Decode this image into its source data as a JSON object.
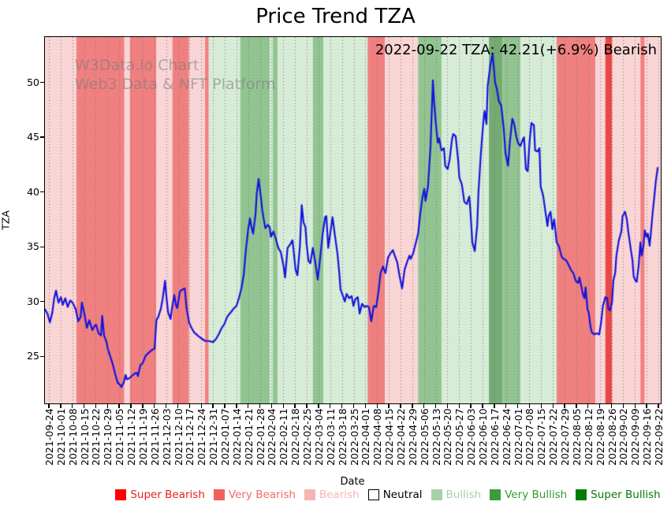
{
  "chart_data": {
    "type": "line",
    "title": "Price Trend TZA",
    "annotation": "2022-09-22 TZA: 42.21(+6.9%) Bearish",
    "watermark_line1": "W3Data.io Chart",
    "watermark_line2": "Web3 Data & NFT Platform",
    "xlabel": "Date",
    "ylabel": "TZA",
    "grid": "vertical-dotted",
    "grid_color": "#777777",
    "line_color": "#1414dd",
    "line_width": 2.2,
    "y_ticks": [
      25,
      30,
      35,
      40,
      45,
      50
    ],
    "y_range": [
      20.7,
      54.15
    ],
    "x_tick_labels": [
      "2021-09-24",
      "2021-10-01",
      "2021-10-08",
      "2021-10-15",
      "2021-10-22",
      "2021-10-29",
      "2021-11-05",
      "2021-11-12",
      "2021-11-19",
      "2021-11-26",
      "2021-12-03",
      "2021-12-10",
      "2021-12-17",
      "2021-12-24",
      "2021-12-31",
      "2022-01-07",
      "2022-01-14",
      "2022-01-21",
      "2022-01-28",
      "2022-02-04",
      "2022-02-11",
      "2022-02-18",
      "2022-02-25",
      "2022-03-04",
      "2022-03-11",
      "2022-03-18",
      "2022-03-25",
      "2022-04-01",
      "2022-04-08",
      "2022-04-15",
      "2022-04-22",
      "2022-04-29",
      "2022-05-06",
      "2022-05-13",
      "2022-05-20",
      "2022-05-27",
      "2022-06-03",
      "2022-06-10",
      "2022-06-17",
      "2022-06-24",
      "2022-07-01",
      "2022-07-08",
      "2022-07-15",
      "2022-07-22",
      "2022-07-29",
      "2022-08-05",
      "2022-08-12",
      "2022-08-19",
      "2022-08-26",
      "2022-09-02",
      "2022-09-09",
      "2022-09-16",
      "2022-09-22"
    ],
    "band_colors": {
      "super-bearish": "#e84848",
      "very-bearish": "#f08080",
      "bearish": "#fad5d5",
      "neutral": "#ffffff",
      "bullish": "#d7ecd7",
      "very-bullish": "#92c492",
      "super-bullish": "#73ab73"
    },
    "bands": [
      [
        0.0,
        0.051,
        "bearish"
      ],
      [
        0.051,
        0.129,
        "very-bearish"
      ],
      [
        0.129,
        0.138,
        "bearish"
      ],
      [
        0.138,
        0.181,
        "very-bearish"
      ],
      [
        0.181,
        0.207,
        "bearish"
      ],
      [
        0.207,
        0.234,
        "very-bearish"
      ],
      [
        0.234,
        0.26,
        "bearish"
      ],
      [
        0.26,
        0.266,
        "very-bearish"
      ],
      [
        0.266,
        0.317,
        "bullish"
      ],
      [
        0.317,
        0.365,
        "very-bullish"
      ],
      [
        0.365,
        0.37,
        "bullish"
      ],
      [
        0.37,
        0.378,
        "very-bullish"
      ],
      [
        0.378,
        0.435,
        "bullish"
      ],
      [
        0.435,
        0.452,
        "very-bullish"
      ],
      [
        0.452,
        0.524,
        "bullish"
      ],
      [
        0.524,
        0.552,
        "very-bearish"
      ],
      [
        0.552,
        0.606,
        "bearish"
      ],
      [
        0.606,
        0.644,
        "very-bullish"
      ],
      [
        0.644,
        0.721,
        "bullish"
      ],
      [
        0.721,
        0.743,
        "super-bullish"
      ],
      [
        0.743,
        0.772,
        "very-bullish"
      ],
      [
        0.772,
        0.831,
        "bullish"
      ],
      [
        0.831,
        0.894,
        "very-bearish"
      ],
      [
        0.894,
        0.91,
        "bearish"
      ],
      [
        0.91,
        0.921,
        "super-bearish"
      ],
      [
        0.921,
        0.967,
        "bearish"
      ],
      [
        0.967,
        0.974,
        "very-bearish"
      ],
      [
        0.974,
        1.0,
        "bearish"
      ]
    ],
    "points": [
      [
        0.0,
        29.3
      ],
      [
        0.004,
        28.9
      ],
      [
        0.008,
        28.1
      ],
      [
        0.012,
        29.0
      ],
      [
        0.015,
        30.3
      ],
      [
        0.018,
        31.0
      ],
      [
        0.022,
        29.9
      ],
      [
        0.026,
        30.4
      ],
      [
        0.029,
        29.7
      ],
      [
        0.033,
        30.3
      ],
      [
        0.037,
        29.5
      ],
      [
        0.041,
        30.1
      ],
      [
        0.045,
        29.9
      ],
      [
        0.05,
        29.3
      ],
      [
        0.054,
        28.2
      ],
      [
        0.058,
        28.6
      ],
      [
        0.06,
        29.9
      ],
      [
        0.064,
        28.9
      ],
      [
        0.068,
        27.6
      ],
      [
        0.072,
        28.3
      ],
      [
        0.077,
        27.4
      ],
      [
        0.081,
        27.8
      ],
      [
        0.083,
        27.9
      ],
      [
        0.087,
        27.1
      ],
      [
        0.091,
        26.9
      ],
      [
        0.093,
        28.7
      ],
      [
        0.096,
        26.9
      ],
      [
        0.1,
        26.3
      ],
      [
        0.102,
        25.7
      ],
      [
        0.106,
        25.0
      ],
      [
        0.11,
        24.3
      ],
      [
        0.114,
        23.4
      ],
      [
        0.118,
        22.6
      ],
      [
        0.122,
        22.4
      ],
      [
        0.124,
        22.2
      ],
      [
        0.128,
        22.6
      ],
      [
        0.131,
        23.3
      ],
      [
        0.133,
        22.9
      ],
      [
        0.137,
        23.0
      ],
      [
        0.141,
        23.2
      ],
      [
        0.145,
        23.4
      ],
      [
        0.149,
        23.5
      ],
      [
        0.151,
        23.2
      ],
      [
        0.155,
        24.2
      ],
      [
        0.159,
        24.4
      ],
      [
        0.163,
        25.0
      ],
      [
        0.166,
        25.2
      ],
      [
        0.17,
        25.4
      ],
      [
        0.174,
        25.6
      ],
      [
        0.178,
        25.7
      ],
      [
        0.181,
        28.3
      ],
      [
        0.184,
        28.6
      ],
      [
        0.188,
        29.3
      ],
      [
        0.191,
        30.2
      ],
      [
        0.195,
        31.9
      ],
      [
        0.197,
        30.6
      ],
      [
        0.2,
        29.0
      ],
      [
        0.204,
        28.4
      ],
      [
        0.206,
        29.3
      ],
      [
        0.21,
        30.6
      ],
      [
        0.213,
        29.6
      ],
      [
        0.215,
        29.4
      ],
      [
        0.219,
        30.9
      ],
      [
        0.223,
        31.1
      ],
      [
        0.227,
        31.2
      ],
      [
        0.23,
        29.4
      ],
      [
        0.234,
        28.1
      ],
      [
        0.238,
        27.6
      ],
      [
        0.242,
        27.2
      ],
      [
        0.246,
        27.0
      ],
      [
        0.25,
        26.8
      ],
      [
        0.255,
        26.6
      ],
      [
        0.26,
        26.4
      ],
      [
        0.266,
        26.4
      ],
      [
        0.273,
        26.3
      ],
      [
        0.278,
        26.6
      ],
      [
        0.283,
        27.1
      ],
      [
        0.287,
        27.6
      ],
      [
        0.291,
        27.9
      ],
      [
        0.296,
        28.6
      ],
      [
        0.3,
        28.9
      ],
      [
        0.303,
        29.1
      ],
      [
        0.307,
        29.4
      ],
      [
        0.311,
        29.6
      ],
      [
        0.315,
        30.3
      ],
      [
        0.319,
        31.2
      ],
      [
        0.323,
        32.5
      ],
      [
        0.326,
        34.5
      ],
      [
        0.33,
        36.6
      ],
      [
        0.333,
        37.6
      ],
      [
        0.335,
        36.9
      ],
      [
        0.338,
        36.2
      ],
      [
        0.342,
        38.0
      ],
      [
        0.344,
        39.9
      ],
      [
        0.347,
        41.2
      ],
      [
        0.351,
        39.4
      ],
      [
        0.353,
        38.3
      ],
      [
        0.356,
        37.3
      ],
      [
        0.358,
        36.7
      ],
      [
        0.362,
        37.0
      ],
      [
        0.365,
        36.8
      ],
      [
        0.367,
        35.9
      ],
      [
        0.371,
        36.4
      ],
      [
        0.375,
        35.7
      ],
      [
        0.379,
        34.9
      ],
      [
        0.383,
        34.5
      ],
      [
        0.387,
        33.4
      ],
      [
        0.39,
        32.2
      ],
      [
        0.394,
        34.9
      ],
      [
        0.398,
        35.2
      ],
      [
        0.402,
        35.6
      ],
      [
        0.405,
        34.0
      ],
      [
        0.407,
        32.9
      ],
      [
        0.41,
        32.4
      ],
      [
        0.414,
        35.0
      ],
      [
        0.417,
        38.8
      ],
      [
        0.42,
        37.2
      ],
      [
        0.423,
        36.8
      ],
      [
        0.425,
        35.2
      ],
      [
        0.428,
        33.7
      ],
      [
        0.431,
        33.5
      ],
      [
        0.435,
        34.9
      ],
      [
        0.439,
        33.6
      ],
      [
        0.443,
        32.0
      ],
      [
        0.447,
        34.0
      ],
      [
        0.451,
        36.2
      ],
      [
        0.455,
        37.7
      ],
      [
        0.457,
        37.8
      ],
      [
        0.46,
        34.9
      ],
      [
        0.464,
        36.5
      ],
      [
        0.467,
        37.7
      ],
      [
        0.471,
        36.0
      ],
      [
        0.475,
        34.4
      ],
      [
        0.478,
        32.6
      ],
      [
        0.48,
        31.1
      ],
      [
        0.484,
        30.5
      ],
      [
        0.487,
        30.0
      ],
      [
        0.49,
        30.7
      ],
      [
        0.494,
        30.3
      ],
      [
        0.498,
        30.5
      ],
      [
        0.501,
        29.6
      ],
      [
        0.504,
        30.2
      ],
      [
        0.508,
        30.4
      ],
      [
        0.511,
        28.9
      ],
      [
        0.515,
        29.8
      ],
      [
        0.519,
        29.5
      ],
      [
        0.522,
        29.6
      ],
      [
        0.526,
        29.5
      ],
      [
        0.53,
        28.2
      ],
      [
        0.534,
        29.6
      ],
      [
        0.538,
        29.5
      ],
      [
        0.542,
        31.1
      ],
      [
        0.545,
        32.6
      ],
      [
        0.549,
        33.2
      ],
      [
        0.553,
        32.6
      ],
      [
        0.557,
        34.0
      ],
      [
        0.561,
        34.4
      ],
      [
        0.565,
        34.7
      ],
      [
        0.568,
        34.2
      ],
      [
        0.572,
        33.6
      ],
      [
        0.576,
        32.3
      ],
      [
        0.58,
        31.2
      ],
      [
        0.584,
        32.9
      ],
      [
        0.588,
        33.6
      ],
      [
        0.592,
        34.2
      ],
      [
        0.594,
        33.9
      ],
      [
        0.598,
        34.4
      ],
      [
        0.602,
        35.3
      ],
      [
        0.606,
        36.2
      ],
      [
        0.609,
        37.8
      ],
      [
        0.613,
        39.5
      ],
      [
        0.616,
        40.3
      ],
      [
        0.618,
        39.2
      ],
      [
        0.622,
        40.5
      ],
      [
        0.626,
        44.0
      ],
      [
        0.63,
        50.2
      ],
      [
        0.632,
        48.2
      ],
      [
        0.635,
        46.1
      ],
      [
        0.638,
        44.5
      ],
      [
        0.64,
        44.9
      ],
      [
        0.644,
        43.8
      ],
      [
        0.648,
        44.0
      ],
      [
        0.65,
        42.4
      ],
      [
        0.654,
        42.1
      ],
      [
        0.657,
        42.9
      ],
      [
        0.661,
        44.8
      ],
      [
        0.663,
        45.3
      ],
      [
        0.667,
        45.1
      ],
      [
        0.671,
        42.9
      ],
      [
        0.673,
        41.3
      ],
      [
        0.677,
        40.7
      ],
      [
        0.681,
        39.1
      ],
      [
        0.685,
        38.9
      ],
      [
        0.689,
        39.6
      ],
      [
        0.691,
        38.2
      ],
      [
        0.694,
        35.4
      ],
      [
        0.698,
        34.6
      ],
      [
        0.702,
        37.0
      ],
      [
        0.704,
        40.0
      ],
      [
        0.708,
        43.6
      ],
      [
        0.712,
        46.5
      ],
      [
        0.714,
        47.4
      ],
      [
        0.717,
        46.2
      ],
      [
        0.719,
        49.7
      ],
      [
        0.723,
        51.5
      ],
      [
        0.727,
        52.6
      ],
      [
        0.731,
        50.0
      ],
      [
        0.734,
        49.4
      ],
      [
        0.737,
        48.3
      ],
      [
        0.741,
        47.9
      ],
      [
        0.745,
        45.8
      ],
      [
        0.748,
        43.5
      ],
      [
        0.752,
        42.4
      ],
      [
        0.755,
        44.6
      ],
      [
        0.759,
        46.7
      ],
      [
        0.762,
        46.2
      ],
      [
        0.766,
        44.9
      ],
      [
        0.769,
        44.4
      ],
      [
        0.772,
        44.2
      ],
      [
        0.776,
        44.8
      ],
      [
        0.778,
        45.0
      ],
      [
        0.781,
        42.1
      ],
      [
        0.784,
        41.9
      ],
      [
        0.787,
        44.6
      ],
      [
        0.79,
        46.3
      ],
      [
        0.794,
        46.1
      ],
      [
        0.796,
        43.8
      ],
      [
        0.8,
        43.7
      ],
      [
        0.803,
        44.0
      ],
      [
        0.805,
        40.5
      ],
      [
        0.809,
        39.7
      ],
      [
        0.812,
        38.5
      ],
      [
        0.816,
        36.9
      ],
      [
        0.818,
        37.8
      ],
      [
        0.821,
        38.2
      ],
      [
        0.824,
        36.6
      ],
      [
        0.827,
        37.5
      ],
      [
        0.831,
        35.4
      ],
      [
        0.835,
        35.0
      ],
      [
        0.839,
        34.1
      ],
      [
        0.842,
        33.9
      ],
      [
        0.846,
        33.8
      ],
      [
        0.85,
        33.4
      ],
      [
        0.854,
        32.9
      ],
      [
        0.858,
        32.6
      ],
      [
        0.862,
        31.9
      ],
      [
        0.866,
        31.7
      ],
      [
        0.868,
        32.2
      ],
      [
        0.871,
        31.4
      ],
      [
        0.873,
        30.8
      ],
      [
        0.876,
        30.3
      ],
      [
        0.878,
        31.3
      ],
      [
        0.881,
        29.3
      ],
      [
        0.883,
        29.0
      ],
      [
        0.886,
        27.7
      ],
      [
        0.888,
        27.2
      ],
      [
        0.892,
        27.0
      ],
      [
        0.896,
        27.1
      ],
      [
        0.9,
        27.0
      ],
      [
        0.903,
        28.0
      ],
      [
        0.906,
        29.6
      ],
      [
        0.91,
        30.4
      ],
      [
        0.913,
        30.3
      ],
      [
        0.915,
        29.3
      ],
      [
        0.918,
        29.2
      ],
      [
        0.921,
        30.0
      ],
      [
        0.923,
        31.9
      ],
      [
        0.926,
        32.6
      ],
      [
        0.928,
        34.2
      ],
      [
        0.932,
        35.6
      ],
      [
        0.936,
        36.4
      ],
      [
        0.938,
        37.8
      ],
      [
        0.942,
        38.2
      ],
      [
        0.945,
        37.5
      ],
      [
        0.947,
        36.5
      ],
      [
        0.951,
        34.9
      ],
      [
        0.954,
        33.8
      ],
      [
        0.956,
        32.3
      ],
      [
        0.959,
        31.9
      ],
      [
        0.961,
        31.8
      ],
      [
        0.964,
        33.2
      ],
      [
        0.967,
        35.4
      ],
      [
        0.969,
        34.2
      ],
      [
        0.972,
        35.1
      ],
      [
        0.974,
        36.5
      ],
      [
        0.977,
        35.9
      ],
      [
        0.979,
        36.2
      ],
      [
        0.982,
        35.1
      ],
      [
        0.984,
        36.3
      ],
      [
        0.987,
        38.2
      ],
      [
        0.99,
        39.8
      ],
      [
        0.992,
        41.0
      ],
      [
        0.995,
        42.2
      ]
    ],
    "legend": {
      "position": "bottom-center",
      "items": [
        {
          "label": "Super Bearish",
          "swatch": "#fe0000",
          "text_color": "#e82020",
          "outlined": false
        },
        {
          "label": "Very Bearish",
          "swatch": "#f25f5f",
          "text_color": "#ee6b6b",
          "outlined": false
        },
        {
          "label": "Bearish",
          "swatch": "#f8b4b4",
          "text_color": "#f5b5b5",
          "outlined": false
        },
        {
          "label": "Neutral",
          "swatch": "#ffffff",
          "text_color": "#000000",
          "outlined": true
        },
        {
          "label": "Bullish",
          "swatch": "#a6d1a6",
          "text_color": "#a6d1a6",
          "outlined": false
        },
        {
          "label": "Very Bullish",
          "swatch": "#3c9c3c",
          "text_color": "#2f9e2f",
          "outlined": false
        },
        {
          "label": "Super Bullish",
          "swatch": "#057c05",
          "text_color": "#067806",
          "outlined": false
        }
      ]
    }
  }
}
